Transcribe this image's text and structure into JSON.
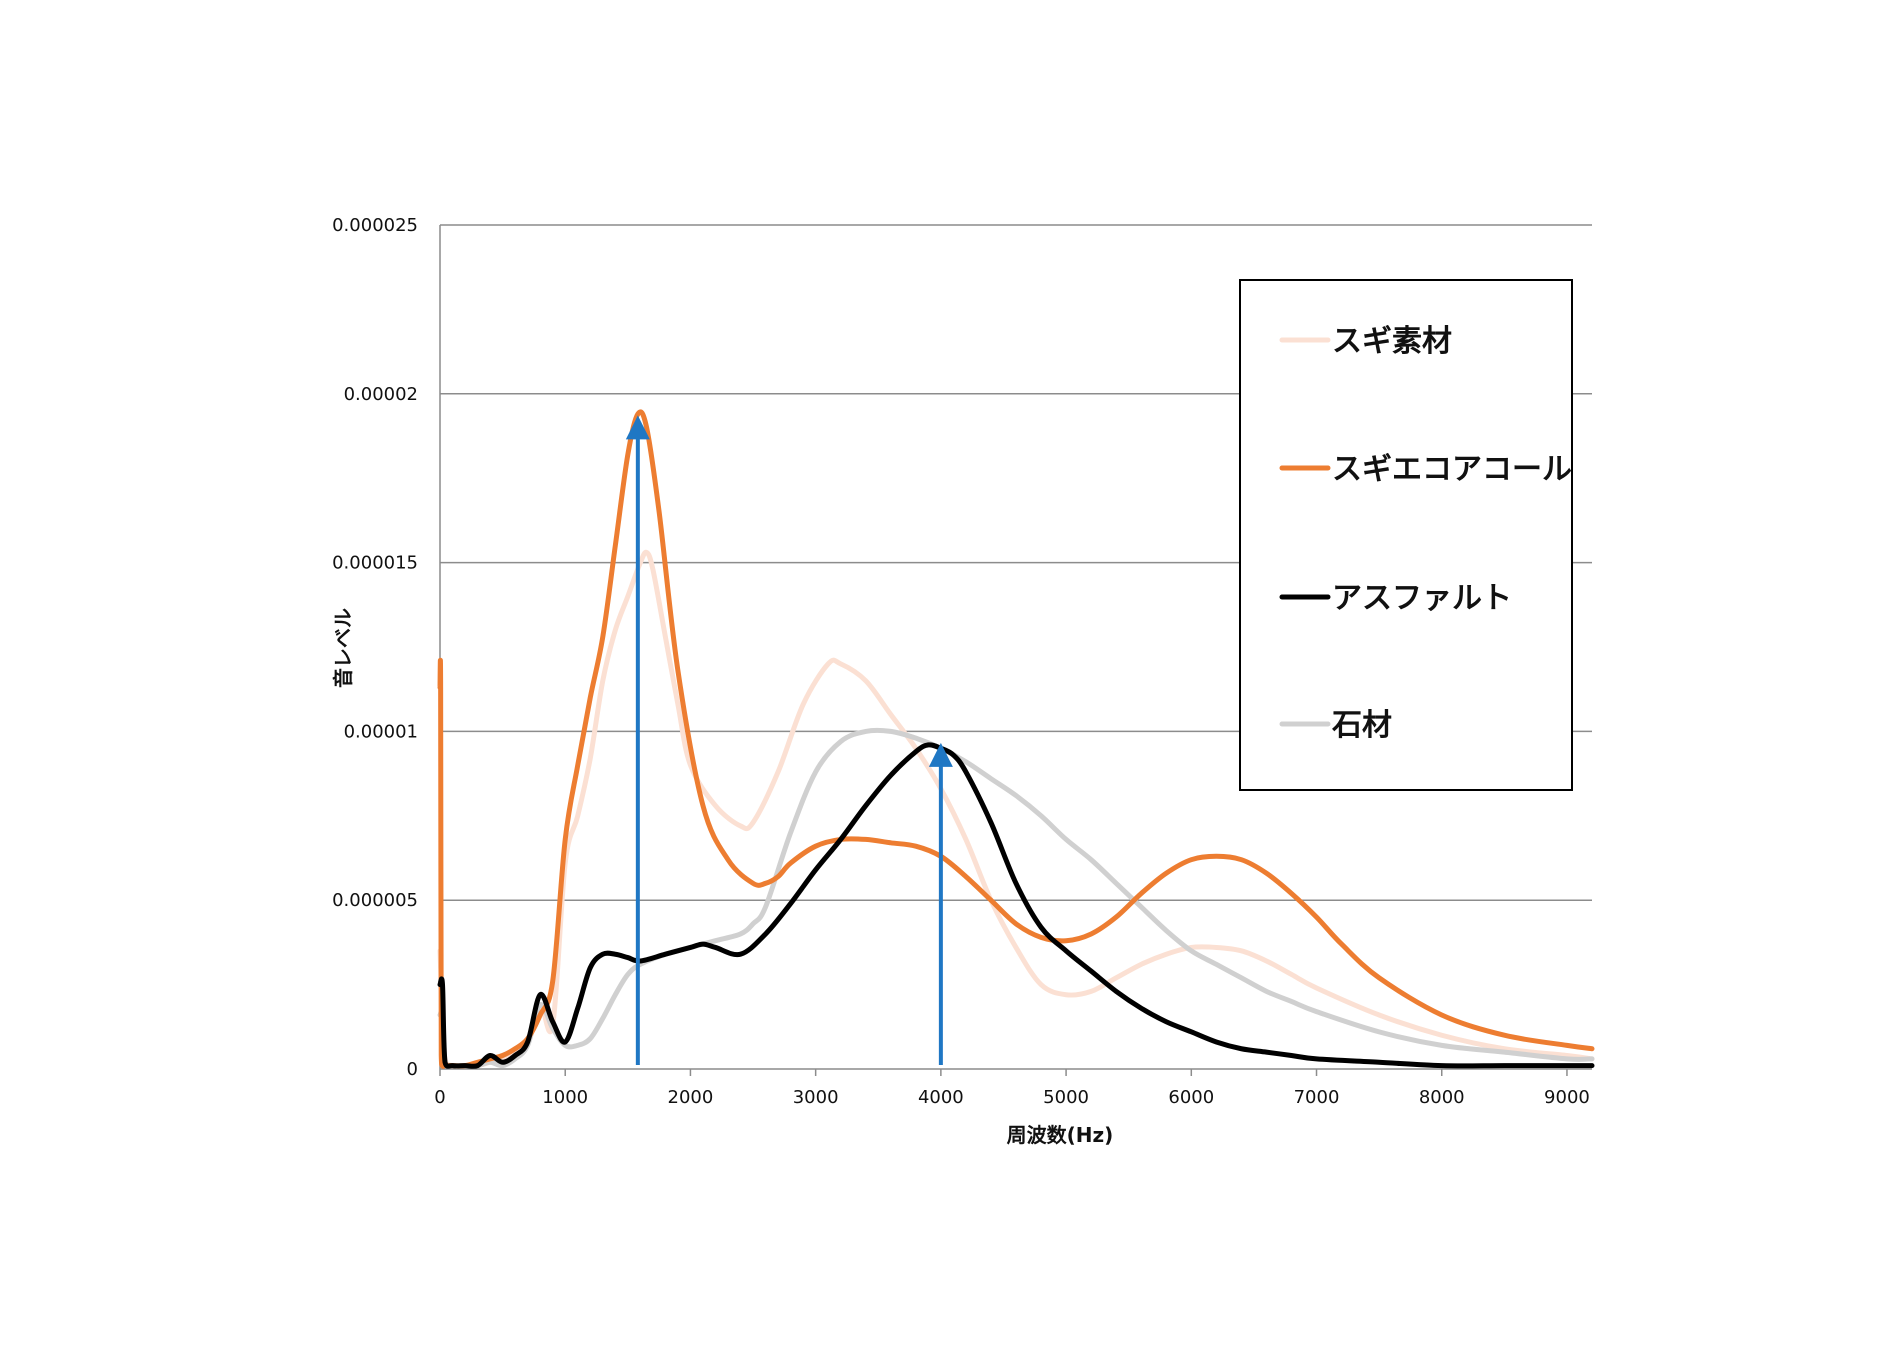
{
  "chart_data": {
    "type": "line",
    "title": "",
    "xlabel": "周波数(Hz)",
    "ylabel": "音レベル",
    "xlim": [
      0,
      9200
    ],
    "ylim": [
      0,
      2.5e-05
    ],
    "grid": true,
    "legend_position": "top-right",
    "x_ticks": [
      "0",
      "1000",
      "2000",
      "3000",
      "4000",
      "5000",
      "6000",
      "7000",
      "8000",
      "9000"
    ],
    "y_ticks": [
      "0",
      "0.000005",
      "0.00001",
      "0.000015",
      "0.00002",
      "0.000025"
    ],
    "series": [
      {
        "name": "スギ素材",
        "color": "#fbe0d3",
        "x": [
          0,
          20,
          40,
          100,
          200,
          300,
          400,
          500,
          600,
          700,
          800,
          900,
          1000,
          1100,
          1200,
          1300,
          1400,
          1500,
          1600,
          1650,
          1700,
          1800,
          1900,
          2000,
          2200,
          2400,
          2500,
          2700,
          2900,
          3100,
          3200,
          3400,
          3600,
          3800,
          4000,
          4200,
          4400,
          4600,
          4800,
          5000,
          5200,
          5400,
          5600,
          5800,
          6000,
          6200,
          6400,
          6600,
          6800,
          7000,
          7500,
          8000,
          8500,
          9000,
          9200
        ],
        "y": [
          3.5e-06,
          1.5e-06,
          3e-07,
          1e-07,
          1e-07,
          1e-07,
          2e-07,
          3e-07,
          5e-07,
          8e-07,
          1.9e-06,
          1.3e-06,
          6.1e-06,
          7.5e-06,
          9.2e-06,
          1.15e-05,
          1.3e-05,
          1.4e-05,
          1.5e-05,
          1.53e-05,
          1.48e-05,
          1.28e-05,
          1.08e-05,
          9e-06,
          7.8e-06,
          7.2e-06,
          7.3e-06,
          8.8e-06,
          1.08e-05,
          1.2e-05,
          1.2e-05,
          1.15e-05,
          1.05e-05,
          9.5e-06,
          8.3e-06,
          6.8e-06,
          5e-06,
          3.6e-06,
          2.5e-06,
          2.2e-06,
          2.3e-06,
          2.7e-06,
          3.1e-06,
          3.4e-06,
          3.6e-06,
          3.6e-06,
          3.5e-06,
          3.2e-06,
          2.8e-06,
          2.4e-06,
          1.6e-06,
          1e-06,
          6e-07,
          4e-07,
          3e-07
        ]
      },
      {
        "name": "スギエコアコール",
        "color": "#ed7d31",
        "x": [
          0,
          5,
          10,
          20,
          40,
          100,
          200,
          300,
          400,
          500,
          600,
          700,
          800,
          900,
          1000,
          1100,
          1200,
          1300,
          1400,
          1500,
          1580,
          1650,
          1750,
          1900,
          2100,
          2300,
          2500,
          2600,
          2700,
          2800,
          3000,
          3200,
          3400,
          3600,
          3800,
          4000,
          4200,
          4400,
          4600,
          4800,
          5000,
          5200,
          5400,
          5600,
          5800,
          6000,
          6200,
          6400,
          6600,
          6800,
          7000,
          7200,
          7500,
          8000,
          8500,
          9000,
          9200
        ],
        "y": [
          1.13e-05,
          1.13e-05,
          4e-07,
          1e-07,
          1e-07,
          1e-07,
          1e-07,
          2e-07,
          3e-07,
          4e-07,
          6e-07,
          9e-07,
          1.6e-06,
          2.6e-06,
          6.8e-06,
          9e-06,
          1.1e-05,
          1.28e-05,
          1.55e-05,
          1.82e-05,
          1.94e-05,
          1.9e-05,
          1.65e-05,
          1.18e-05,
          7.8e-06,
          6.2e-06,
          5.5e-06,
          5.5e-06,
          5.7e-06,
          6.1e-06,
          6.6e-06,
          6.8e-06,
          6.8e-06,
          6.7e-06,
          6.6e-06,
          6.3e-06,
          5.7e-06,
          5e-06,
          4.3e-06,
          3.9e-06,
          3.8e-06,
          4e-06,
          4.5e-06,
          5.2e-06,
          5.8e-06,
          6.2e-06,
          6.3e-06,
          6.2e-06,
          5.8e-06,
          5.2e-06,
          4.5e-06,
          3.7e-06,
          2.7e-06,
          1.6e-06,
          1e-06,
          7e-07,
          6e-07
        ]
      },
      {
        "name": "アスファルト",
        "color": "#000000",
        "x": [
          0,
          20,
          40,
          100,
          200,
          300,
          400,
          500,
          600,
          700,
          800,
          900,
          1000,
          1100,
          1200,
          1300,
          1400,
          1500,
          1600,
          1800,
          2000,
          2100,
          2200,
          2400,
          2600,
          2800,
          3000,
          3200,
          3400,
          3600,
          3800,
          3900,
          4000,
          4100,
          4200,
          4400,
          4600,
          4800,
          5000,
          5200,
          5400,
          5600,
          5800,
          6000,
          6200,
          6400,
          6600,
          6800,
          7000,
          7500,
          8000,
          8500,
          9000,
          9200
        ],
        "y": [
          2.5e-06,
          2.5e-06,
          2e-07,
          1e-07,
          1e-07,
          1e-07,
          4e-07,
          2e-07,
          4e-07,
          8e-07,
          2.2e-06,
          1.4e-06,
          8e-07,
          1.8e-06,
          3e-06,
          3.4e-06,
          3.4e-06,
          3.3e-06,
          3.2e-06,
          3.4e-06,
          3.6e-06,
          3.7e-06,
          3.6e-06,
          3.4e-06,
          4e-06,
          4.9e-06,
          5.9e-06,
          6.8e-06,
          7.8e-06,
          8.7e-06,
          9.4e-06,
          9.6e-06,
          9.5e-06,
          9.3e-06,
          8.8e-06,
          7.3e-06,
          5.5e-06,
          4.2e-06,
          3.5e-06,
          2.9e-06,
          2.3e-06,
          1.8e-06,
          1.4e-06,
          1.1e-06,
          8e-07,
          6e-07,
          5e-07,
          4e-07,
          3e-07,
          2e-07,
          1e-07,
          1e-07,
          1e-07,
          1e-07
        ]
      },
      {
        "name": "石材",
        "color": "#d0d0d0",
        "x": [
          0,
          20,
          40,
          100,
          200,
          300,
          400,
          500,
          600,
          700,
          800,
          900,
          1000,
          1100,
          1200,
          1300,
          1400,
          1500,
          1600,
          1800,
          2000,
          2200,
          2400,
          2500,
          2600,
          2800,
          3000,
          3200,
          3400,
          3600,
          3800,
          4000,
          4200,
          4400,
          4600,
          4800,
          5000,
          5200,
          5400,
          5600,
          5800,
          6000,
          6200,
          6400,
          6600,
          6800,
          7000,
          7500,
          8000,
          8500,
          9000,
          9200
        ],
        "y": [
          1.6e-06,
          1.6e-06,
          2e-07,
          1e-07,
          1e-07,
          1e-07,
          2e-07,
          1e-07,
          3e-07,
          7e-07,
          1.9e-06,
          1.2e-06,
          7e-07,
          7e-07,
          9e-07,
          1.5e-06,
          2.2e-06,
          2.8e-06,
          3.1e-06,
          3.4e-06,
          3.6e-06,
          3.8e-06,
          4e-06,
          4.3e-06,
          4.8e-06,
          7e-06,
          8.8e-06,
          9.7e-06,
          1e-05,
          1e-05,
          9.8e-06,
          9.5e-06,
          9.1e-06,
          8.6e-06,
          8.1e-06,
          7.5e-06,
          6.8e-06,
          6.2e-06,
          5.5e-06,
          4.8e-06,
          4.1e-06,
          3.5e-06,
          3.1e-06,
          2.7e-06,
          2.3e-06,
          2e-06,
          1.7e-06,
          1.1e-06,
          7e-07,
          5e-07,
          3e-07,
          3e-07
        ]
      }
    ],
    "arrows": [
      {
        "x": 1580,
        "y_from": 0,
        "y_to": 1.93e-05,
        "color": "#1f77c4"
      },
      {
        "x": 4000,
        "y_from": 0,
        "y_to": 9.6e-06,
        "color": "#1f77c4"
      }
    ]
  }
}
